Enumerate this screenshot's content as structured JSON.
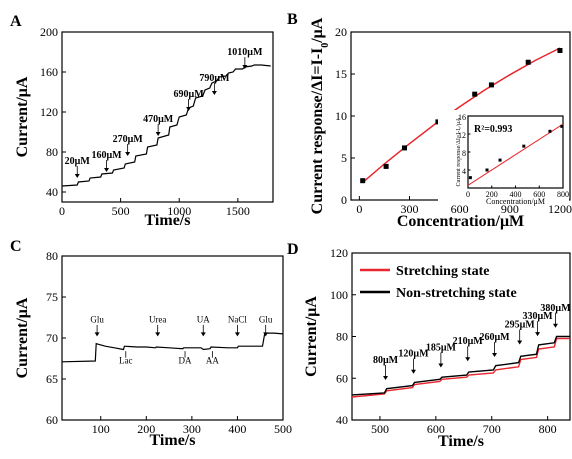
{
  "chart_data": [
    {
      "panel": "A",
      "type": "line",
      "xlabel": "Time/s",
      "ylabel": "Current/μA",
      "xlim": [
        0,
        1800
      ],
      "ylim": [
        30,
        200
      ],
      "xticks": [
        0,
        500,
        1000,
        1500
      ],
      "yticks": [
        40,
        80,
        120,
        160,
        200
      ],
      "x": [
        0,
        130,
        140,
        230,
        240,
        330,
        340,
        430,
        440,
        530,
        540,
        620,
        630,
        720,
        730,
        810,
        820,
        910,
        920,
        980,
        1000,
        1060,
        1080,
        1120,
        1140,
        1200,
        1220,
        1260,
        1280,
        1320,
        1340,
        1400,
        1420,
        1460,
        1480,
        1540,
        1560,
        1620,
        1640,
        1700,
        1780
      ],
      "y": [
        46,
        47,
        50,
        51,
        54,
        55,
        58,
        59,
        62,
        64,
        68,
        70,
        76,
        78,
        85,
        87,
        94,
        97,
        105,
        107,
        115,
        117,
        124,
        126,
        134,
        136,
        142,
        144,
        149,
        151,
        155,
        156,
        159,
        160,
        163,
        163,
        165,
        166,
        167,
        167,
        166
      ],
      "annotations": [
        {
          "text": "20μM",
          "x": 130,
          "y": 56
        },
        {
          "text": "160μM",
          "x": 380,
          "y": 62
        },
        {
          "text": "270μM",
          "x": 560,
          "y": 78
        },
        {
          "text": "470μM",
          "x": 820,
          "y": 98
        },
        {
          "text": "690μM",
          "x": 1080,
          "y": 123
        },
        {
          "text": "790μM",
          "x": 1300,
          "y": 139
        },
        {
          "text": "1010μM",
          "x": 1560,
          "y": 165
        }
      ]
    },
    {
      "panel": "B",
      "type": "scatter",
      "xlabel": "Concentration/μM",
      "ylabel": "Current response/ΔI=I-I",
      "ylabel_sub": "0",
      "ylabel_unit": "/μA",
      "xlim": [
        -50,
        1260
      ],
      "ylim": [
        0,
        20
      ],
      "xticks": [
        0,
        300,
        600,
        900,
        1200
      ],
      "yticks": [
        0,
        5,
        10,
        15,
        20
      ],
      "x": [
        20,
        160,
        270,
        470,
        690,
        790,
        1010,
        1200
      ],
      "y": [
        2.3,
        4.0,
        6.2,
        9.3,
        12.6,
        13.7,
        16.4,
        17.8
      ],
      "fit": {
        "x": [
          20,
          150,
          300,
          450,
          600,
          750,
          900,
          1050,
          1200
        ],
        "y": [
          2.1,
          4.3,
          6.7,
          9.0,
          11.1,
          13.1,
          14.9,
          16.6,
          18.1
        ]
      },
      "inset": {
        "xlabel": "Concentration/μM",
        "ylabel": "Current response/ΔI=I-I₀/μA",
        "text": "R²=0.993",
        "xlim": [
          0,
          800
        ],
        "ylim": [
          0,
          16
        ],
        "xticks": [
          0,
          200,
          400,
          600,
          800
        ],
        "yticks": [
          4,
          8,
          12,
          16
        ],
        "x": [
          20,
          160,
          270,
          470,
          690,
          790
        ],
        "y": [
          2.3,
          4.0,
          6.2,
          9.3,
          12.6,
          13.7
        ]
      }
    },
    {
      "panel": "C",
      "type": "line",
      "xlabel": "Time/s",
      "ylabel": "Current/μA",
      "xlim": [
        15,
        500
      ],
      "ylim": [
        60,
        80
      ],
      "xticks": [
        100,
        200,
        300,
        400,
        500
      ],
      "yticks": [
        60,
        65,
        70,
        75,
        80
      ],
      "x": [
        15,
        88,
        90,
        110,
        130,
        150,
        152,
        180,
        200,
        220,
        222,
        250,
        280,
        282,
        320,
        325,
        340,
        342,
        380,
        400,
        402,
        455,
        460,
        480,
        500
      ],
      "y": [
        67.1,
        67.2,
        69.3,
        69.0,
        68.8,
        68.6,
        69.0,
        68.9,
        68.9,
        68.8,
        68.9,
        68.8,
        68.7,
        68.8,
        68.8,
        68.6,
        68.7,
        68.9,
        68.8,
        68.8,
        69.0,
        69.0,
        70.6,
        70.6,
        70.5
      ],
      "annotations": [
        {
          "text": "Glu",
          "x": 92,
          "pos": "above"
        },
        {
          "text": "Lac",
          "x": 155,
          "pos": "below"
        },
        {
          "text": "Urea",
          "x": 225,
          "pos": "above"
        },
        {
          "text": "DA",
          "x": 285,
          "pos": "below"
        },
        {
          "text": "UA",
          "x": 325,
          "pos": "above"
        },
        {
          "text": "AA",
          "x": 345,
          "pos": "below"
        },
        {
          "text": "NaCl",
          "x": 400,
          "pos": "above"
        },
        {
          "text": "Glu",
          "x": 462,
          "pos": "above"
        }
      ]
    },
    {
      "panel": "D",
      "type": "line",
      "xlabel": "Time/s",
      "ylabel": "Current/μA",
      "xlim": [
        450,
        840
      ],
      "ylim": [
        40,
        120
      ],
      "xticks": [
        500,
        600,
        700,
        800
      ],
      "yticks": [
        40,
        60,
        80,
        100,
        120
      ],
      "legend": "top-left",
      "series": [
        {
          "name": "Stretching state",
          "color": "#e8262d",
          "x": [
            450,
            508,
            512,
            558,
            562,
            607,
            611,
            655,
            659,
            703,
            707,
            748,
            752,
            780,
            784,
            812,
            816,
            840
          ],
          "y": [
            51,
            52.5,
            54,
            55.5,
            57,
            58.5,
            59.5,
            60.5,
            61.5,
            62.5,
            64,
            65.5,
            69,
            70,
            74,
            75,
            79,
            79
          ]
        },
        {
          "name": "Non-stretching state",
          "color": "#000000",
          "x": [
            450,
            508,
            512,
            558,
            562,
            607,
            611,
            655,
            659,
            703,
            707,
            748,
            752,
            780,
            784,
            812,
            816,
            840
          ],
          "y": [
            52,
            53,
            55,
            56.5,
            58,
            59.5,
            60.5,
            61.5,
            63,
            64,
            66,
            67.5,
            70.5,
            71.5,
            76,
            77,
            80,
            80
          ]
        }
      ],
      "annotations": [
        {
          "text": "80μM",
          "x": 510,
          "y": 63
        },
        {
          "text": "120μM",
          "x": 560,
          "y": 66
        },
        {
          "text": "185μM",
          "x": 609,
          "y": 69
        },
        {
          "text": "210μM",
          "x": 657,
          "y": 72
        },
        {
          "text": "260μM",
          "x": 705,
          "y": 74
        },
        {
          "text": "295μM",
          "x": 750,
          "y": 80
        },
        {
          "text": "330μM",
          "x": 782,
          "y": 84
        },
        {
          "text": "380μM",
          "x": 814,
          "y": 88
        }
      ]
    }
  ]
}
